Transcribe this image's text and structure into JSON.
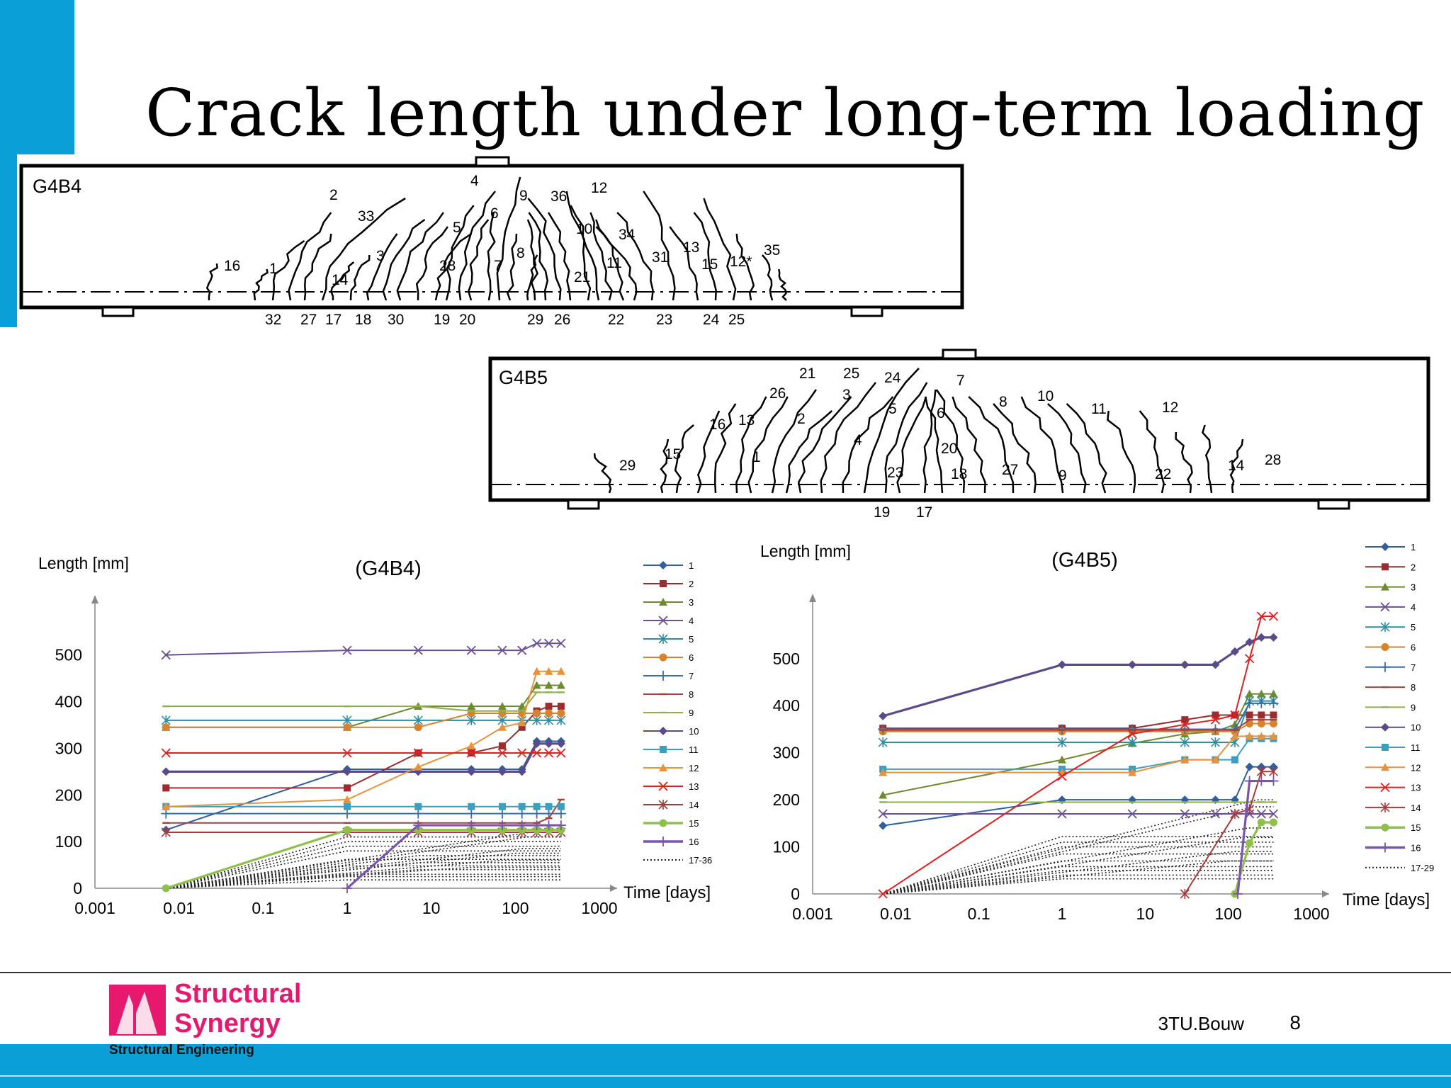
{
  "slide": {
    "title": "Crack length under long-term loading",
    "page_number": "8",
    "organization": "3TU.Bouw",
    "logo": {
      "line1": "Structural",
      "line2": "Synergy",
      "subtitle": "Structural Engineering"
    },
    "colors": {
      "accent_blue": "#0a9fd6",
      "brand_pink": "#e6196e"
    }
  },
  "beams": [
    {
      "label": "G4B4",
      "crack_labels_top": [
        "2",
        "33",
        "4",
        "9",
        "36",
        "6",
        "10",
        "12",
        "5",
        "34",
        "3",
        "16",
        "1",
        "14",
        "28",
        "7",
        "8",
        "11",
        "31",
        "13",
        "15",
        "12*",
        "35",
        "21"
      ],
      "crack_labels_bottom": [
        "32",
        "27",
        "17",
        "18",
        "30",
        "19",
        "20",
        "29",
        "26",
        "22",
        "23",
        "24",
        "25"
      ]
    },
    {
      "label": "G4B5",
      "crack_labels_top": [
        "21",
        "25",
        "24",
        "7",
        "26",
        "3",
        "8",
        "10",
        "5",
        "6",
        "11",
        "12",
        "16",
        "13",
        "2",
        "4",
        "20",
        "1",
        "15",
        "29",
        "23",
        "18",
        "27",
        "9",
        "22",
        "14",
        "28"
      ],
      "crack_labels_bottom": [
        "19",
        "17"
      ]
    }
  ],
  "chart_data": [
    {
      "type": "line",
      "title": "(G4B4)",
      "ylabel": "Length [mm]",
      "xlabel": "Time [days]",
      "x_scale": "log",
      "xlim": [
        0.001,
        1000
      ],
      "ylim": [
        0,
        580
      ],
      "xticks": [
        "0.001",
        "0.01",
        "0.1",
        "1",
        "10",
        "100",
        "1000"
      ],
      "yticks": [
        "0",
        "100",
        "200",
        "300",
        "400",
        "500"
      ],
      "legend_position": "right",
      "series": [
        {
          "name": "1",
          "color": "#2f5f9e",
          "marker": "diamond",
          "x": [
            0.007,
            1,
            7,
            30,
            70,
            120,
            180,
            250,
            350
          ],
          "y": [
            125,
            255,
            255,
            255,
            255,
            255,
            315,
            315,
            315
          ]
        },
        {
          "name": "2",
          "color": "#9b2d30",
          "marker": "square",
          "x": [
            0.007,
            1,
            7,
            30,
            70,
            120,
            180,
            250,
            350
          ],
          "y": [
            215,
            215,
            290,
            290,
            305,
            345,
            380,
            390,
            390
          ]
        },
        {
          "name": "3",
          "color": "#6e8b2f",
          "marker": "triangle",
          "x": [
            0.007,
            1,
            7,
            30,
            70,
            120,
            180,
            250,
            350
          ],
          "y": [
            345,
            345,
            390,
            390,
            390,
            390,
            435,
            435,
            435
          ]
        },
        {
          "name": "4",
          "color": "#6a4f96",
          "marker": "x",
          "x": [
            0.007,
            1,
            7,
            30,
            70,
            120,
            180,
            250,
            350
          ],
          "y": [
            500,
            510,
            510,
            510,
            510,
            510,
            525,
            525,
            525
          ]
        },
        {
          "name": "5",
          "color": "#2d8ea6",
          "marker": "star",
          "x": [
            0.007,
            1,
            7,
            30,
            70,
            120,
            180,
            250,
            350
          ],
          "y": [
            360,
            360,
            360,
            360,
            360,
            360,
            360,
            360,
            360
          ]
        },
        {
          "name": "6",
          "color": "#d9822b",
          "marker": "circle",
          "x": [
            0.007,
            1,
            7,
            30,
            70,
            120,
            180,
            250,
            350
          ],
          "y": [
            345,
            345,
            345,
            375,
            375,
            375,
            375,
            375,
            375
          ]
        },
        {
          "name": "7",
          "color": "#3a6ea8",
          "marker": "plus",
          "x": [
            0.007,
            1,
            7,
            30,
            70,
            120,
            180,
            250,
            350
          ],
          "y": [
            160,
            160,
            160,
            160,
            160,
            160,
            160,
            160,
            160
          ]
        },
        {
          "name": "8",
          "color": "#a0443f",
          "marker": "dash",
          "x": [
            0.007,
            1,
            7,
            30,
            70,
            120,
            180,
            250,
            350
          ],
          "y": [
            140,
            140,
            140,
            140,
            140,
            140,
            140,
            150,
            190
          ]
        },
        {
          "name": "9",
          "color": "#8db04a",
          "marker": "dash",
          "x": [
            0.007,
            1,
            7,
            30,
            70,
            120,
            180,
            250,
            350
          ],
          "y": [
            390,
            390,
            390,
            380,
            380,
            380,
            420,
            420,
            420
          ]
        },
        {
          "name": "10",
          "color": "#5b4a8a",
          "marker": "diamond",
          "x": [
            0.007,
            1,
            7,
            30,
            70,
            120,
            180,
            250,
            350
          ],
          "y": [
            250,
            250,
            250,
            250,
            250,
            250,
            310,
            310,
            310
          ]
        },
        {
          "name": "11",
          "color": "#3d9fbf",
          "marker": "square",
          "x": [
            0.007,
            1,
            7,
            30,
            70,
            120,
            180,
            250,
            350
          ],
          "y": [
            175,
            175,
            175,
            175,
            175,
            175,
            175,
            175,
            175
          ]
        },
        {
          "name": "12",
          "color": "#e8923a",
          "marker": "triangle",
          "x": [
            0.007,
            1,
            7,
            30,
            70,
            120,
            180,
            250,
            350
          ],
          "y": [
            175,
            190,
            260,
            305,
            345,
            355,
            465,
            465,
            465
          ]
        },
        {
          "name": "13",
          "color": "#e02020",
          "marker": "x",
          "x": [
            0.007,
            1,
            7,
            30,
            70,
            120,
            180,
            250,
            350
          ],
          "y": [
            290,
            290,
            290,
            290,
            290,
            290,
            290,
            290,
            290
          ]
        },
        {
          "name": "14",
          "color": "#a83a3a",
          "marker": "star",
          "x": [
            0.007,
            1,
            7,
            30,
            70,
            120,
            180,
            250,
            350
          ],
          "y": [
            120,
            120,
            120,
            120,
            120,
            120,
            120,
            120,
            120
          ]
        },
        {
          "name": "15",
          "color": "#8fc04a",
          "marker": "circle",
          "x": [
            0.007,
            1,
            7,
            30,
            70,
            120,
            180,
            250,
            350
          ],
          "y": [
            0,
            125,
            125,
            125,
            125,
            125,
            125,
            125,
            125
          ]
        },
        {
          "name": "16",
          "color": "#7a55b0",
          "marker": "plus",
          "x": [
            1,
            7,
            30,
            70,
            120,
            180,
            250,
            350
          ],
          "y": [
            0,
            135,
            135,
            135,
            135,
            135,
            135,
            135
          ]
        },
        {
          "name": "17-36",
          "color": "#222222",
          "dotted": true
        }
      ]
    },
    {
      "type": "line",
      "title": "(G4B5)",
      "ylabel": "Length [mm]",
      "xlabel": "Time [days]",
      "x_scale": "log",
      "xlim": [
        0.001,
        1000
      ],
      "ylim": [
        0,
        590
      ],
      "xticks": [
        "0.001",
        "0.01",
        "0.1",
        "1",
        "10",
        "100",
        "1000"
      ],
      "yticks": [
        "0",
        "100",
        "200",
        "300",
        "400",
        "500"
      ],
      "legend_position": "right",
      "series": [
        {
          "name": "1",
          "color": "#2f5f9e",
          "marker": "diamond",
          "x": [
            0.007,
            1,
            7,
            30,
            70,
            120,
            180,
            250,
            350
          ],
          "y": [
            145,
            200,
            200,
            200,
            200,
            200,
            270,
            270,
            270
          ]
        },
        {
          "name": "2",
          "color": "#9b2d30",
          "marker": "square",
          "x": [
            0.007,
            1,
            7,
            30,
            70,
            120,
            180,
            250,
            350
          ],
          "y": [
            352,
            352,
            352,
            370,
            380,
            380,
            380,
            380,
            380
          ]
        },
        {
          "name": "3",
          "color": "#6e8b2f",
          "marker": "triangle",
          "x": [
            0.007,
            1,
            7,
            30,
            70,
            120,
            180,
            250,
            350
          ],
          "y": [
            210,
            285,
            320,
            340,
            345,
            360,
            425,
            425,
            425
          ]
        },
        {
          "name": "4",
          "color": "#6a4f96",
          "marker": "x",
          "x": [
            0.007,
            1,
            7,
            30,
            70,
            120,
            180,
            250,
            350
          ],
          "y": [
            170,
            170,
            170,
            170,
            170,
            170,
            170,
            170,
            170
          ]
        },
        {
          "name": "5",
          "color": "#2d8ea6",
          "marker": "star",
          "x": [
            0.007,
            1,
            7,
            30,
            70,
            120,
            180,
            250,
            350
          ],
          "y": [
            322,
            322,
            322,
            322,
            322,
            322,
            410,
            410,
            410
          ]
        },
        {
          "name": "6",
          "color": "#d9822b",
          "marker": "circle",
          "x": [
            0.007,
            1,
            7,
            30,
            70,
            120,
            180,
            250,
            350
          ],
          "y": [
            345,
            345,
            345,
            345,
            345,
            345,
            362,
            362,
            362
          ]
        },
        {
          "name": "7",
          "color": "#3a6ea8",
          "marker": "plus",
          "x": [
            0.007,
            1,
            7,
            30,
            70,
            120,
            180,
            250,
            350
          ],
          "y": [
            350,
            350,
            350,
            350,
            350,
            350,
            405,
            405,
            405
          ]
        },
        {
          "name": "8",
          "color": "#a0443f",
          "marker": "dash",
          "x": [
            0.007,
            1,
            7,
            30,
            70,
            120,
            180,
            250,
            350
          ],
          "y": [
            348,
            348,
            348,
            348,
            348,
            348,
            370,
            370,
            370
          ]
        },
        {
          "name": "9",
          "color": "#8db04a",
          "marker": "dash",
          "x": [
            0.007,
            1,
            7,
            30,
            70,
            120,
            180,
            250,
            350
          ],
          "y": [
            195,
            195,
            195,
            195,
            195,
            195,
            195,
            195,
            195
          ]
        },
        {
          "name": "10",
          "color": "#5b4a8a",
          "marker": "diamond",
          "x": [
            0.007,
            1,
            7,
            30,
            70,
            120,
            180,
            250,
            350
          ],
          "y": [
            378,
            487,
            487,
            487,
            487,
            515,
            535,
            545,
            545
          ]
        },
        {
          "name": "11",
          "color": "#3d9fbf",
          "marker": "square",
          "x": [
            0.007,
            1,
            7,
            30,
            70,
            120,
            180,
            250,
            350
          ],
          "y": [
            265,
            265,
            265,
            285,
            285,
            285,
            330,
            330,
            330
          ]
        },
        {
          "name": "12",
          "color": "#e8923a",
          "marker": "triangle",
          "x": [
            0.007,
            1,
            7,
            30,
            70,
            120,
            180,
            250,
            350
          ],
          "y": [
            258,
            258,
            258,
            285,
            285,
            335,
            335,
            335,
            335
          ]
        },
        {
          "name": "13",
          "color": "#e02020",
          "marker": "x",
          "x": [
            0.007,
            1,
            7,
            30,
            70,
            120,
            180,
            250,
            350
          ],
          "y": [
            0,
            250,
            340,
            360,
            370,
            380,
            500,
            590,
            590
          ]
        },
        {
          "name": "14",
          "color": "#a83a3a",
          "marker": "star",
          "x": [
            30,
            120,
            180,
            250,
            350
          ],
          "y": [
            0,
            170,
            180,
            260,
            260
          ]
        },
        {
          "name": "15",
          "color": "#8fc04a",
          "marker": "circle",
          "x": [
            120,
            180,
            250,
            350
          ],
          "y": [
            0,
            108,
            152,
            152
          ]
        },
        {
          "name": "16",
          "color": "#7a55b0",
          "marker": "plus",
          "x": [
            130,
            180,
            250,
            350
          ],
          "y": [
            0,
            240,
            240,
            240
          ]
        },
        {
          "name": "17-29",
          "color": "#222222",
          "dotted": true
        }
      ]
    }
  ]
}
